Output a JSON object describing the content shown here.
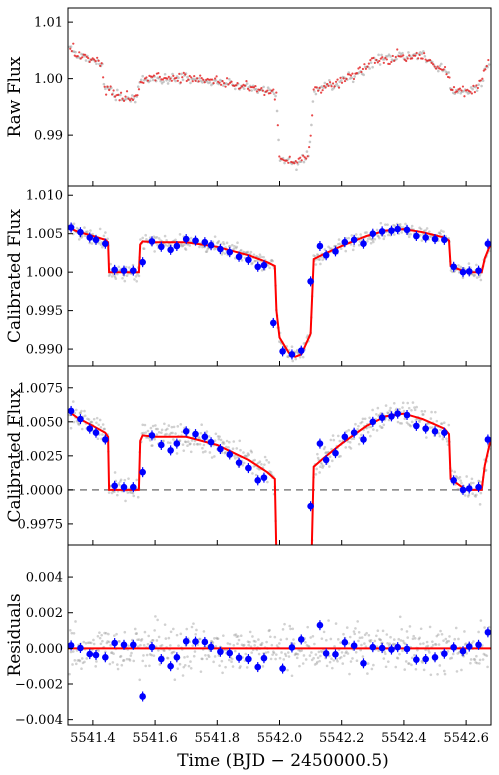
{
  "chart_data": [
    {
      "type": "scatter",
      "ylabel": "Raw Flux",
      "xlim": [
        5541.32,
        5542.68
      ],
      "ylim": [
        0.981,
        1.0125
      ],
      "yticks": [
        "0.99",
        "1.00",
        "1.01"
      ],
      "ytick_values": [
        0.99,
        1.0,
        1.01
      ],
      "series": [
        {
          "kind": "raw-points-gray",
          "color": "#9a9a9a",
          "anchors_x": [
            5541.32,
            5541.36,
            5541.4,
            5541.43,
            5541.435,
            5541.45,
            5541.5,
            5541.54,
            5541.55,
            5541.57,
            5541.6,
            5541.7,
            5541.8,
            5541.9,
            5541.96,
            5541.99,
            5542.0,
            5542.01,
            5542.05,
            5542.09,
            5542.1,
            5542.11,
            5542.14,
            5542.2,
            5542.26,
            5542.3,
            5542.36,
            5542.4,
            5542.46,
            5542.52,
            5542.545,
            5542.55,
            5542.58,
            5542.62,
            5542.65,
            5542.66,
            5542.68
          ],
          "anchors_y": [
            1.0055,
            1.004,
            1.003,
            1.0025,
            0.9985,
            0.998,
            0.9965,
            0.9965,
            0.999,
            1.0,
            1.0,
            1.0,
            0.9995,
            0.9985,
            0.998,
            0.997,
            0.986,
            0.9855,
            0.985,
            0.9865,
            0.9895,
            0.998,
            0.9985,
            0.9995,
            1.0015,
            1.003,
            1.0035,
            1.004,
            1.004,
            1.0015,
            1.0008,
            0.998,
            0.9978,
            0.998,
            0.999,
            1.0015,
            1.0035
          ],
          "noise": 0.0009
        },
        {
          "kind": "raw-points-red",
          "color": "#e41a1c"
        }
      ]
    },
    {
      "type": "scatter",
      "ylabel": "Calibrated Flux",
      "xlim": [
        5541.32,
        5542.68
      ],
      "ylim": [
        0.9878,
        1.0112
      ],
      "yticks": [
        "0.990",
        "0.995",
        "1.000",
        "1.005",
        "1.010"
      ],
      "ytick_values": [
        0.99,
        0.995,
        1.0,
        1.005,
        1.01
      ],
      "series": [
        {
          "kind": "points-gray",
          "color": "#9a9a9a",
          "noise": 0.0009
        },
        {
          "kind": "binned",
          "color": "#0000ff"
        },
        {
          "kind": "model",
          "color": "#ff0000"
        }
      ]
    },
    {
      "type": "scatter",
      "ylabel": "Calibrated Flux",
      "xlim": [
        5541.32,
        5542.68
      ],
      "ylim": [
        0.99595,
        1.0091
      ],
      "yticks": [
        "0.9975",
        "1.0000",
        "1.0025",
        "1.0050",
        "1.0075"
      ],
      "ytick_values": [
        0.9975,
        1.0,
        1.0025,
        1.005,
        1.0075
      ],
      "reference_line": 1.0,
      "series": [
        {
          "kind": "points-gray",
          "color": "#9a9a9a",
          "noise": 0.0009
        },
        {
          "kind": "binned",
          "color": "#0000ff"
        },
        {
          "kind": "model",
          "color": "#ff0000"
        }
      ]
    },
    {
      "type": "scatter",
      "ylabel": "Residuals",
      "xlabel": "Time (BJD − 2450000.5)",
      "xlim": [
        5541.32,
        5542.68
      ],
      "ylim": [
        -0.0043,
        0.0058
      ],
      "yticks": [
        "−0.004",
        "−0.002",
        "0.000",
        "0.002",
        "0.004"
      ],
      "ytick_values": [
        -0.004,
        -0.002,
        0.0,
        0.002,
        0.004
      ],
      "xticks": [
        "5541.4",
        "5541.6",
        "5541.8",
        "5542.0",
        "5542.2",
        "5542.4",
        "5542.6"
      ],
      "xtick_values": [
        5541.4,
        5541.6,
        5541.8,
        5542.0,
        5542.2,
        5542.4,
        5542.6
      ],
      "series": [
        {
          "kind": "points-gray",
          "color": "#9a9a9a",
          "noise": 0.0009
        },
        {
          "kind": "binned",
          "color": "#0000ff"
        },
        {
          "kind": "zero-line",
          "color": "#ff0000",
          "value": 0.0
        }
      ]
    }
  ],
  "model": {
    "x": [
      5541.32,
      5541.35,
      5541.4,
      5541.44,
      5541.449,
      5541.452,
      5541.548,
      5541.552,
      5541.56,
      5541.6,
      5541.7,
      5541.8,
      5541.9,
      5541.96,
      5541.985,
      5541.99,
      5542.0,
      5542.03,
      5542.05,
      5542.07,
      5542.1,
      5542.11,
      5542.14,
      5542.2,
      5542.28,
      5542.34,
      5542.4,
      5542.46,
      5542.53,
      5542.545,
      5542.55,
      5542.6,
      5542.65,
      5542.66,
      5542.68
    ],
    "y": [
      1.0058,
      1.0053,
      1.0047,
      1.0042,
      1.0039,
      1.0,
      1.0,
      1.0036,
      1.004,
      1.0039,
      1.0039,
      1.0033,
      1.0022,
      1.0013,
      1.0008,
      0.995,
      0.9915,
      0.9895,
      0.989,
      0.9893,
      0.992,
      1.0017,
      1.0023,
      1.0034,
      1.0047,
      1.0054,
      1.0056,
      1.0052,
      1.0045,
      1.0041,
      1.0008,
      1.0,
      1.0,
      1.0018,
      1.0038
    ]
  },
  "binned": {
    "x": [
      5541.33,
      5541.36,
      5541.39,
      5541.41,
      5541.44,
      5541.47,
      5541.5,
      5541.53,
      5541.56,
      5541.59,
      5541.62,
      5541.65,
      5541.67,
      5541.7,
      5541.73,
      5541.76,
      5541.78,
      5541.81,
      5541.84,
      5541.87,
      5541.9,
      5541.93,
      5541.95,
      5541.98,
      5542.01,
      5542.04,
      5542.07,
      5542.1,
      5542.13,
      5542.15,
      5542.18,
      5542.21,
      5542.24,
      5542.27,
      5542.3,
      5542.33,
      5542.36,
      5542.38,
      5542.41,
      5542.44,
      5542.47,
      5542.5,
      5542.53,
      5542.56,
      5542.59,
      5542.61,
      5542.64,
      5542.67
    ],
    "y": [
      1.0058,
      1.0052,
      1.0045,
      1.0042,
      1.0037,
      1.0003,
      1.0002,
      1.0002,
      1.0013,
      1.004,
      1.0033,
      1.0029,
      1.0034,
      1.0043,
      1.0041,
      1.0039,
      1.0035,
      1.003,
      1.0026,
      1.002,
      1.0016,
      1.0007,
      1.0009,
      0.9934,
      0.9897,
      0.9893,
      0.9898,
      0.9988,
      1.0034,
      1.0022,
      1.0027,
      1.0039,
      1.0042,
      1.0037,
      1.005,
      1.0053,
      1.0054,
      1.0056,
      1.0055,
      1.0047,
      1.0045,
      1.0043,
      1.0042,
      1.0007,
      1.0,
      1.0001,
      1.0002,
      1.0037
    ]
  },
  "labels": {
    "xlabel": "Time (BJD − 2450000.5)"
  }
}
